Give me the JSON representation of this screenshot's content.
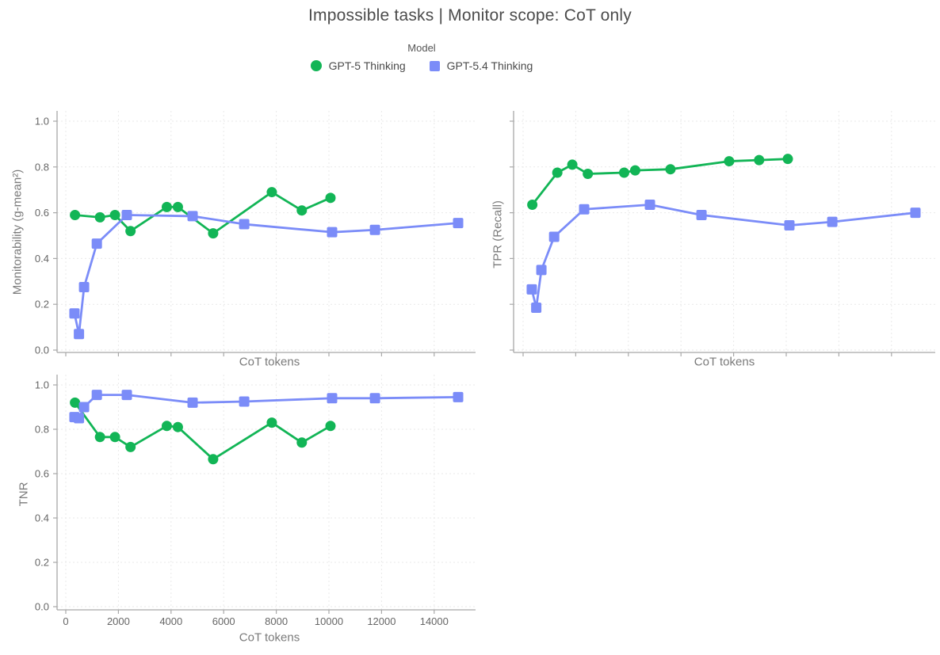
{
  "title": "Impossible tasks | Monitor scope: CoT only",
  "legend": {
    "title": "Model",
    "items": [
      {
        "label": "GPT-5 Thinking",
        "marker": "circle",
        "color": "#12b556"
      },
      {
        "label": "GPT-5.4 Thinking",
        "marker": "square",
        "color": "#7b8cf8"
      }
    ]
  },
  "colors": {
    "green_series": "#12b556",
    "blue_series": "#7b8cf8",
    "gridline": "#e9e9e9",
    "spine": "#a8a8a8",
    "tick_text": "#666666"
  },
  "chart_data": [
    {
      "type": "line",
      "panel": "top-left",
      "ylabel": "Monitorability (g-mean²)",
      "xlabel": "CoT tokens",
      "grid": true,
      "xlim": [
        -360,
        15600
      ],
      "ylim": [
        0,
        1
      ],
      "x_ticks": {
        "values": [
          0,
          2000,
          4000,
          6000,
          8000,
          10000,
          12000,
          14000
        ],
        "labels": [
          "0",
          "2000",
          "4000",
          "6000",
          "8000",
          "10000",
          "12000",
          "14000"
        ],
        "labels_visible": false
      },
      "y_ticks": {
        "values": [
          0,
          0.2,
          0.4,
          0.6,
          0.8,
          1
        ],
        "labels": [
          "0.0",
          "0.2",
          "0.4",
          "0.6",
          "0.8",
          "1.0"
        ],
        "labels_visible": true
      },
      "series": [
        {
          "name": "GPT-5 Thinking",
          "marker": "circle",
          "color": "#12b556",
          "x": [
            350,
            1300,
            1870,
            2460,
            3840,
            4260,
            5600,
            7830,
            8970,
            10060
          ],
          "y": [
            0.59,
            0.58,
            0.59,
            0.52,
            0.625,
            0.625,
            0.51,
            0.69,
            0.61,
            0.665
          ]
        },
        {
          "name": "GPT-5.4 Thinking",
          "marker": "square",
          "color": "#7b8cf8",
          "x": [
            330,
            500,
            695,
            1180,
            2320,
            4820,
            6780,
            10120,
            11750,
            14910
          ],
          "y": [
            0.16,
            0.07,
            0.275,
            0.465,
            0.59,
            0.585,
            0.55,
            0.515,
            0.525,
            0.555
          ]
        }
      ]
    },
    {
      "type": "line",
      "panel": "top-right",
      "ylabel": "TPR (Recall)",
      "xlabel": "CoT tokens",
      "grid": true,
      "xlim": [
        -360,
        15660
      ],
      "ylim": [
        0,
        1
      ],
      "x_ticks": {
        "values": [
          0,
          2000,
          4000,
          6000,
          8000,
          10000,
          12000,
          14000
        ],
        "labels": [
          "0",
          "2000",
          "4000",
          "6000",
          "8000",
          "10000",
          "12000",
          "14000"
        ],
        "labels_visible": false
      },
      "y_ticks": {
        "values": [
          0,
          0.2,
          0.4,
          0.6,
          0.8,
          1
        ],
        "labels": [
          "0.0",
          "0.2",
          "0.4",
          "0.6",
          "0.8",
          "1.0"
        ],
        "labels_visible": false
      },
      "series": [
        {
          "name": "GPT-5 Thinking",
          "marker": "circle",
          "color": "#12b556",
          "x": [
            350,
            1300,
            1870,
            2460,
            3840,
            4260,
            5600,
            7830,
            8970,
            10060
          ],
          "y": [
            0.635,
            0.775,
            0.81,
            0.77,
            0.775,
            0.785,
            0.79,
            0.825,
            0.83,
            0.835
          ]
        },
        {
          "name": "GPT-5.4 Thinking",
          "marker": "square",
          "color": "#7b8cf8",
          "x": [
            330,
            500,
            695,
            1180,
            2320,
            4820,
            6780,
            10120,
            11750,
            14910
          ],
          "y": [
            0.265,
            0.185,
            0.35,
            0.495,
            0.615,
            0.635,
            0.59,
            0.545,
            0.56,
            0.6
          ]
        }
      ]
    },
    {
      "type": "line",
      "panel": "bottom-left",
      "ylabel": "TNR",
      "xlabel": "CoT tokens",
      "grid": true,
      "xlim": [
        -360,
        15600
      ],
      "ylim": [
        0,
        1
      ],
      "x_ticks": {
        "values": [
          0,
          2000,
          4000,
          6000,
          8000,
          10000,
          12000,
          14000
        ],
        "labels": [
          "0",
          "2000",
          "4000",
          "6000",
          "8000",
          "10000",
          "12000",
          "14000"
        ],
        "labels_visible": true
      },
      "y_ticks": {
        "values": [
          0,
          0.2,
          0.4,
          0.6,
          0.8,
          1
        ],
        "labels": [
          "0.0",
          "0.2",
          "0.4",
          "0.6",
          "0.8",
          "1.0"
        ],
        "labels_visible": true
      },
      "series": [
        {
          "name": "GPT-5 Thinking",
          "marker": "circle",
          "color": "#12b556",
          "x": [
            350,
            1300,
            1870,
            2460,
            3840,
            4260,
            5600,
            7830,
            8970,
            10060
          ],
          "y": [
            0.92,
            0.765,
            0.765,
            0.72,
            0.815,
            0.81,
            0.665,
            0.83,
            0.74,
            0.815
          ]
        },
        {
          "name": "GPT-5.4 Thinking",
          "marker": "square",
          "color": "#7b8cf8",
          "x": [
            330,
            500,
            695,
            1180,
            2320,
            4820,
            6780,
            10120,
            11750,
            14910
          ],
          "y": [
            0.855,
            0.85,
            0.9,
            0.955,
            0.955,
            0.92,
            0.925,
            0.94,
            0.94,
            0.945
          ]
        }
      ]
    }
  ]
}
